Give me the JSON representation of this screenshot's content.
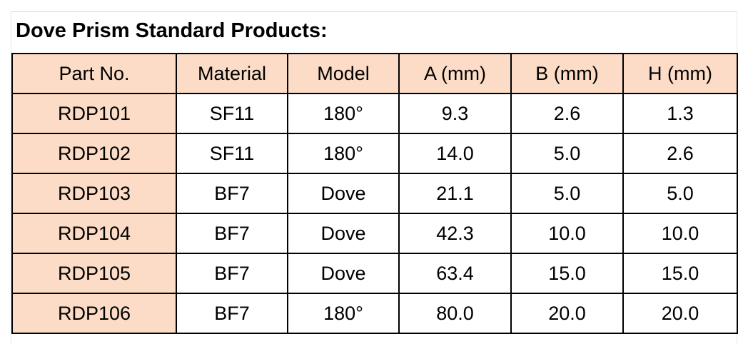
{
  "title": "Dove Prism Standard Products:",
  "table": {
    "headers": [
      "Part No.",
      "Material",
      "Model",
      "A (mm)",
      "B (mm)",
      "H (mm)"
    ],
    "rows": [
      [
        "RDP101",
        "SF11",
        "180°",
        "9.3",
        "2.6",
        "1.3"
      ],
      [
        "RDP102",
        "SF11",
        "180°",
        "14.0",
        "5.0",
        "2.6"
      ],
      [
        "RDP103",
        "BF7",
        "Dove",
        "21.1",
        "5.0",
        "5.0"
      ],
      [
        "RDP104",
        "BF7",
        "Dove",
        "42.3",
        "10.0",
        "10.0"
      ],
      [
        "RDP105",
        "BF7",
        "Dove",
        "63.4",
        "15.0",
        "15.0"
      ],
      [
        "RDP106",
        "BF7",
        "180°",
        "80.0",
        "20.0",
        "20.0"
      ]
    ]
  },
  "colors": {
    "header_fill": "#fcdcc6",
    "border": "#000000",
    "text": "#000000"
  }
}
